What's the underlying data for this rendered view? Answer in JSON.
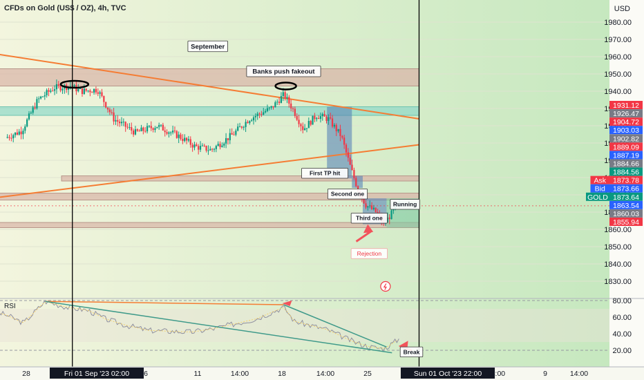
{
  "header": {
    "title": "CFDs on Gold (US$ / OZ), 4h, TVC",
    "currency": "USD"
  },
  "colors": {
    "background_left": "#f3f5de",
    "background_right": "#c6e8bf",
    "bull": "#089981",
    "bear": "#f23645",
    "trendline": "#f57c33",
    "zone_brown": "#d8b4a6",
    "zone_green": "#8fd8c7",
    "rsi_line": "#8f8f9e",
    "rsi_ma": "#f5d06a",
    "rsi_trend": "#3f9a8a",
    "vline": "#000000",
    "arrow": "#f2535b"
  },
  "chart_data": [
    {
      "type": "candlestick",
      "title": "CFDs on Gold (US$ / OZ), 4h, TVC",
      "y_unit": "USD",
      "ylim": [
        1820,
        1990
      ],
      "y_ticks": [
        1980,
        1970,
        1960,
        1950,
        1940,
        1930,
        1920,
        1910,
        1900,
        1890,
        1880,
        1870,
        1860,
        1850,
        1840,
        1830
      ],
      "y_tick_labels": [
        "1980.00",
        "1970.00",
        "1960.00",
        "1950.00",
        "1940.00",
        "1930.00",
        "1920.00",
        "1910.00",
        "1900.00",
        "1890.00",
        "1880.00",
        "1870.00",
        "1860.00",
        "1850.00",
        "1840.00",
        "1830.00"
      ],
      "x_ticks": [
        "28",
        "Fri 01 Sep '23  02:00",
        "6",
        "11",
        "14:00",
        "18",
        "14:00",
        "25",
        "14:00",
        "Sun 01 Oct '23  22:00",
        "14:00",
        "9",
        "14:00"
      ],
      "price_path": [
        {
          "day": 26,
          "price": 1913
        },
        {
          "day": 27.5,
          "price": 1917
        },
        {
          "day": 29,
          "price": 1935
        },
        {
          "day": 30.5,
          "price": 1942
        },
        {
          "day": 32,
          "price": 1943
        },
        {
          "day": 33,
          "price": 1940
        },
        {
          "day": 34.5,
          "price": 1941
        },
        {
          "day": 36,
          "price": 1924
        },
        {
          "day": 38,
          "price": 1916
        },
        {
          "day": 40,
          "price": 1920
        },
        {
          "day": 42,
          "price": 1914
        },
        {
          "day": 43.5,
          "price": 1908
        },
        {
          "day": 45,
          "price": 1906
        },
        {
          "day": 47,
          "price": 1915
        },
        {
          "day": 48.5,
          "price": 1924
        },
        {
          "day": 50.5,
          "price": 1930
        },
        {
          "day": 51.7,
          "price": 1938
        },
        {
          "day": 52.5,
          "price": 1930
        },
        {
          "day": 53.5,
          "price": 1918
        },
        {
          "day": 54.7,
          "price": 1926
        },
        {
          "day": 55.8,
          "price": 1924
        },
        {
          "day": 57,
          "price": 1914
        },
        {
          "day": 57.8,
          "price": 1897
        },
        {
          "day": 58.6,
          "price": 1882
        },
        {
          "day": 59.3,
          "price": 1874
        },
        {
          "day": 60.2,
          "price": 1870
        },
        {
          "day": 60.9,
          "price": 1863
        },
        {
          "day": 62.2,
          "price": 1873.64
        }
      ],
      "price_labels": [
        {
          "value": 1931.12,
          "text": "1931.12",
          "color": "#f23645"
        },
        {
          "value": 1926.47,
          "text": "1926.47",
          "color": "#787b86"
        },
        {
          "value": 1904.72,
          "text": "1904.72",
          "color": "#f23645"
        },
        {
          "value": 1903.03,
          "text": "1903.03",
          "color": "#2962ff"
        },
        {
          "value": 1902.82,
          "text": "1902.82",
          "color": "#787b86"
        },
        {
          "value": 1889.09,
          "text": "1889.09",
          "color": "#f23645"
        },
        {
          "value": 1887.19,
          "text": "1887.19",
          "color": "#2962ff"
        },
        {
          "value": 1884.66,
          "text": "1884.66",
          "color": "#787b86"
        },
        {
          "value": 1884.56,
          "text": "1884.56",
          "color": "#089981"
        },
        {
          "value": 1873.78,
          "text": "1873.78",
          "color": "#f23645",
          "tag": "Ask"
        },
        {
          "value": 1873.66,
          "text": "1873.66",
          "color": "#2962ff",
          "tag": "Bid"
        },
        {
          "value": 1873.64,
          "text": "1873.64",
          "color": "#089981",
          "tag": "GOLD"
        },
        {
          "value": 1863.54,
          "text": "1863.54",
          "color": "#2962ff"
        },
        {
          "value": 1860.03,
          "text": "1860.03",
          "color": "#787b86"
        },
        {
          "value": 1855.94,
          "text": "1855.94",
          "color": "#f23645"
        }
      ],
      "zones": [
        {
          "from_day": 24.5,
          "to_day": 64,
          "low": 1943,
          "high": 1953,
          "color": "brown"
        },
        {
          "from_day": 24.5,
          "to_day": 64,
          "low": 1926,
          "high": 1931,
          "color": "green"
        },
        {
          "from_day": 31,
          "to_day": 64,
          "low": 1888,
          "high": 1891,
          "color": "brown"
        },
        {
          "from_day": 24.5,
          "to_day": 64,
          "low": 1877,
          "high": 1881,
          "color": "brown"
        },
        {
          "from_day": 24.5,
          "to_day": 64,
          "low": 1861,
          "high": 1864,
          "color": "brown"
        }
      ],
      "trendlines": [
        {
          "from": {
            "day": 24.5,
            "price": 1962
          },
          "to": {
            "day": 64,
            "price": 1924
          }
        },
        {
          "from": {
            "day": 24.5,
            "price": 1878
          },
          "to": {
            "day": 64,
            "price": 1909
          }
        }
      ],
      "position_boxes": [
        {
          "from_day": 55.5,
          "to_day": 57.8,
          "low": 1889.5,
          "high": 1931,
          "color": "blue"
        },
        {
          "from_day": 57.8,
          "to_day": 58.8,
          "low": 1884,
          "high": 1891,
          "color": "blue"
        },
        {
          "from_day": 58.8,
          "to_day": 61,
          "low": 1863,
          "high": 1878,
          "color": "blue"
        },
        {
          "from_day": 61,
          "to_day": 64,
          "low": 1861,
          "high": 1878,
          "color": "green"
        }
      ],
      "vertical_lines": [
        {
          "x_label": "Fri 01 Sep '23  02:00"
        },
        {
          "x_label": "Sun 01 Oct '23  22:00"
        }
      ],
      "annotations": [
        {
          "text": "September",
          "day": 44.5,
          "price": 1966
        },
        {
          "text": "Banks push fakeout",
          "day": 51.5,
          "price": 1951.5
        },
        {
          "text": "First TP hit",
          "day": 55.3,
          "price": 1892.5
        },
        {
          "text": "Second one",
          "day": 57.4,
          "price": 1880.5
        },
        {
          "text": "Running",
          "day": 62.7,
          "price": 1874.5
        },
        {
          "text": "Third one",
          "day": 59.4,
          "price": 1866.5
        },
        {
          "text": "Rejection",
          "day": 59.4,
          "price": 1846
        }
      ]
    },
    {
      "type": "line",
      "title": "RSI",
      "ylim": [
        15,
        85
      ],
      "y_ticks": [
        80,
        60,
        40,
        20
      ],
      "y_tick_labels": [
        "80.00",
        "60.00",
        "40.00",
        "20.00"
      ],
      "rsi_path": [
        {
          "day": 24.5,
          "value": 68
        },
        {
          "day": 26,
          "value": 62
        },
        {
          "day": 27.5,
          "value": 53
        },
        {
          "day": 29.5,
          "value": 79
        },
        {
          "day": 31.5,
          "value": 72
        },
        {
          "day": 33.5,
          "value": 68
        },
        {
          "day": 35,
          "value": 58
        },
        {
          "day": 37,
          "value": 50
        },
        {
          "day": 39,
          "value": 44
        },
        {
          "day": 41,
          "value": 43
        },
        {
          "day": 43,
          "value": 42
        },
        {
          "day": 45,
          "value": 46
        },
        {
          "day": 47,
          "value": 52
        },
        {
          "day": 49,
          "value": 58
        },
        {
          "day": 51.5,
          "value": 72
        },
        {
          "day": 52.5,
          "value": 55
        },
        {
          "day": 54,
          "value": 50
        },
        {
          "day": 55.5,
          "value": 45
        },
        {
          "day": 57,
          "value": 36
        },
        {
          "day": 58,
          "value": 30
        },
        {
          "day": 59.5,
          "value": 24
        },
        {
          "day": 60.8,
          "value": 22
        },
        {
          "day": 62.2,
          "value": 34
        }
      ],
      "trendlines": [
        {
          "from": {
            "day": 29.5,
            "value": 79
          },
          "to": {
            "day": 51.5,
            "value": 75
          },
          "color": "orange"
        },
        {
          "from": {
            "day": 29.5,
            "value": 79
          },
          "to": {
            "day": 61.5,
            "value": 17
          },
          "color": "teal"
        },
        {
          "from": {
            "day": 51.5,
            "value": 75
          },
          "to": {
            "day": 61,
            "value": 24
          },
          "color": "teal"
        }
      ],
      "annotations": [
        {
          "text": "Break",
          "day": 63.3,
          "value": 18
        }
      ]
    }
  ]
}
